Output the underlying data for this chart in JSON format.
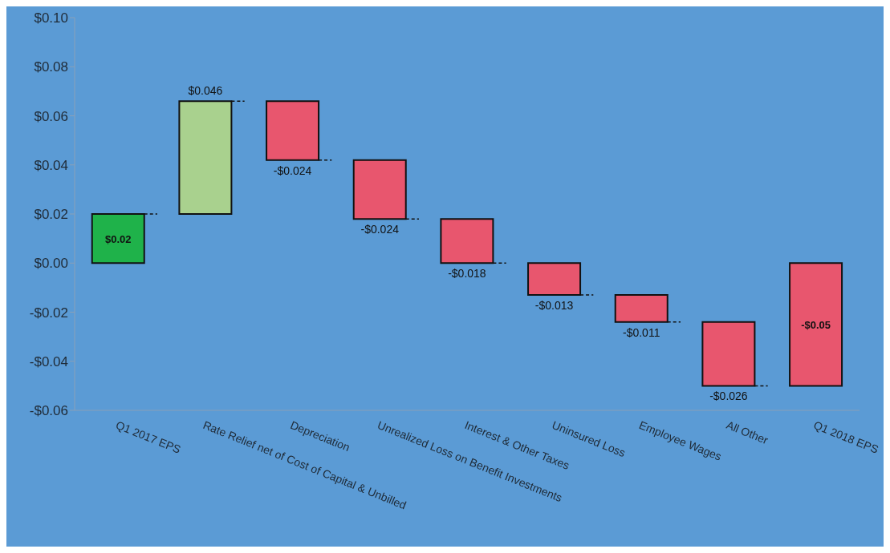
{
  "chart_data": {
    "type": "bar",
    "categories": [
      "Q1 2017 EPS",
      "Rate Relief net of Cost of Capital & Unbilled",
      "Depreciation",
      "Unrealized Loss on Benefit Investments",
      "Interest & Other Taxes",
      "Uninsured Loss",
      "Employee Wages",
      "All Other",
      "Q1 2018 EPS"
    ],
    "values": [
      0.02,
      0.046,
      -0.024,
      -0.024,
      -0.018,
      -0.013,
      -0.011,
      -0.026,
      -0.05
    ],
    "base": [
      0,
      0.02,
      0.066,
      0.042,
      0.018,
      0,
      -0.013,
      -0.024,
      0
    ],
    "colors": [
      "#1fb24a",
      "#a9d18e",
      "#e8566e",
      "#e8566e",
      "#e8566e",
      "#e8566e",
      "#e8566e",
      "#e8566e",
      "#e8566e"
    ],
    "value_labels": [
      "$0.02",
      "$0.046",
      "-$0.024",
      "-$0.024",
      "-$0.018",
      "-$0.013",
      "-$0.011",
      "-$0.026",
      "-$0.05"
    ],
    "ylim": [
      -0.06,
      0.1
    ],
    "yticks": [
      {
        "value": -0.06,
        "label": "-$0.06"
      },
      {
        "value": -0.04,
        "label": "-$0.04"
      },
      {
        "value": -0.02,
        "label": "-$0.02"
      },
      {
        "value": 0,
        "label": "$0.00"
      },
      {
        "value": 0.02,
        "label": "$0.02"
      },
      {
        "value": 0.04,
        "label": "$0.04"
      },
      {
        "value": 0.06,
        "label": "$0.06"
      },
      {
        "value": 0.08,
        "label": "$0.08"
      },
      {
        "value": 0.1,
        "label": "$0.10"
      }
    ],
    "grid": false,
    "legend": false
  }
}
